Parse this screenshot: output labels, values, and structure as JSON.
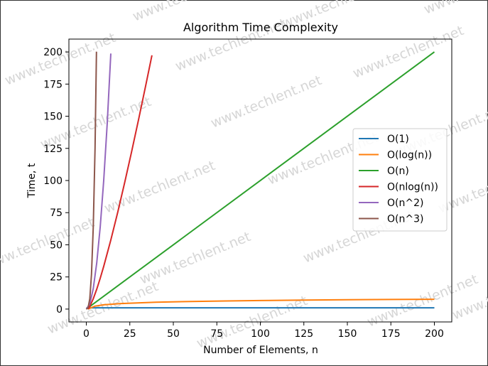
{
  "watermark": "www.techlent.net",
  "chart_data": {
    "type": "line",
    "title": "Algorithm Time Complexity",
    "xlabel": "Number of Elements, n",
    "ylabel": "Time, t",
    "xlim": [
      -10,
      210
    ],
    "ylim": [
      -10,
      210
    ],
    "xticks": [
      0,
      25,
      50,
      75,
      100,
      125,
      150,
      175,
      200
    ],
    "yticks": [
      0,
      25,
      50,
      75,
      100,
      125,
      150,
      175,
      200
    ],
    "legend_position": "center-right",
    "grid": false,
    "series": [
      {
        "name": "O(1)",
        "color": "#1f77b4",
        "x": [
          0,
          200
        ],
        "y": [
          1,
          1
        ]
      },
      {
        "name": "O(log(n))",
        "color": "#ff7f0e",
        "x": [
          1,
          5,
          10,
          20,
          40,
          60,
          80,
          100,
          125,
          150,
          175,
          200
        ],
        "y": [
          0,
          2.32,
          3.32,
          4.32,
          5.32,
          5.91,
          6.32,
          6.64,
          6.97,
          7.23,
          7.45,
          7.64
        ]
      },
      {
        "name": "O(n)",
        "color": "#2ca02c",
        "x": [
          0,
          200
        ],
        "y": [
          0,
          200
        ]
      },
      {
        "name": "O(nlog(n))",
        "color": "#d62728",
        "x": [
          1,
          2,
          4,
          6,
          8,
          10,
          14,
          18,
          22,
          26,
          30,
          34,
          37.7
        ],
        "y": [
          0,
          2,
          8,
          15.5,
          24,
          33.2,
          53.3,
          75,
          98.1,
          122.2,
          147.2,
          173,
          197.4
        ]
      },
      {
        "name": "O(n^2)",
        "color": "#9467bd",
        "x": [
          0,
          2,
          4,
          6,
          8,
          10,
          12,
          14.1
        ],
        "y": [
          0,
          4,
          16,
          36,
          64,
          100,
          144,
          198.8
        ]
      },
      {
        "name": "O(n^3)",
        "color": "#8c564b",
        "x": [
          0,
          1,
          2,
          3,
          4,
          5,
          5.85
        ],
        "y": [
          0,
          1,
          8,
          27,
          64,
          125,
          200.2
        ]
      }
    ]
  }
}
